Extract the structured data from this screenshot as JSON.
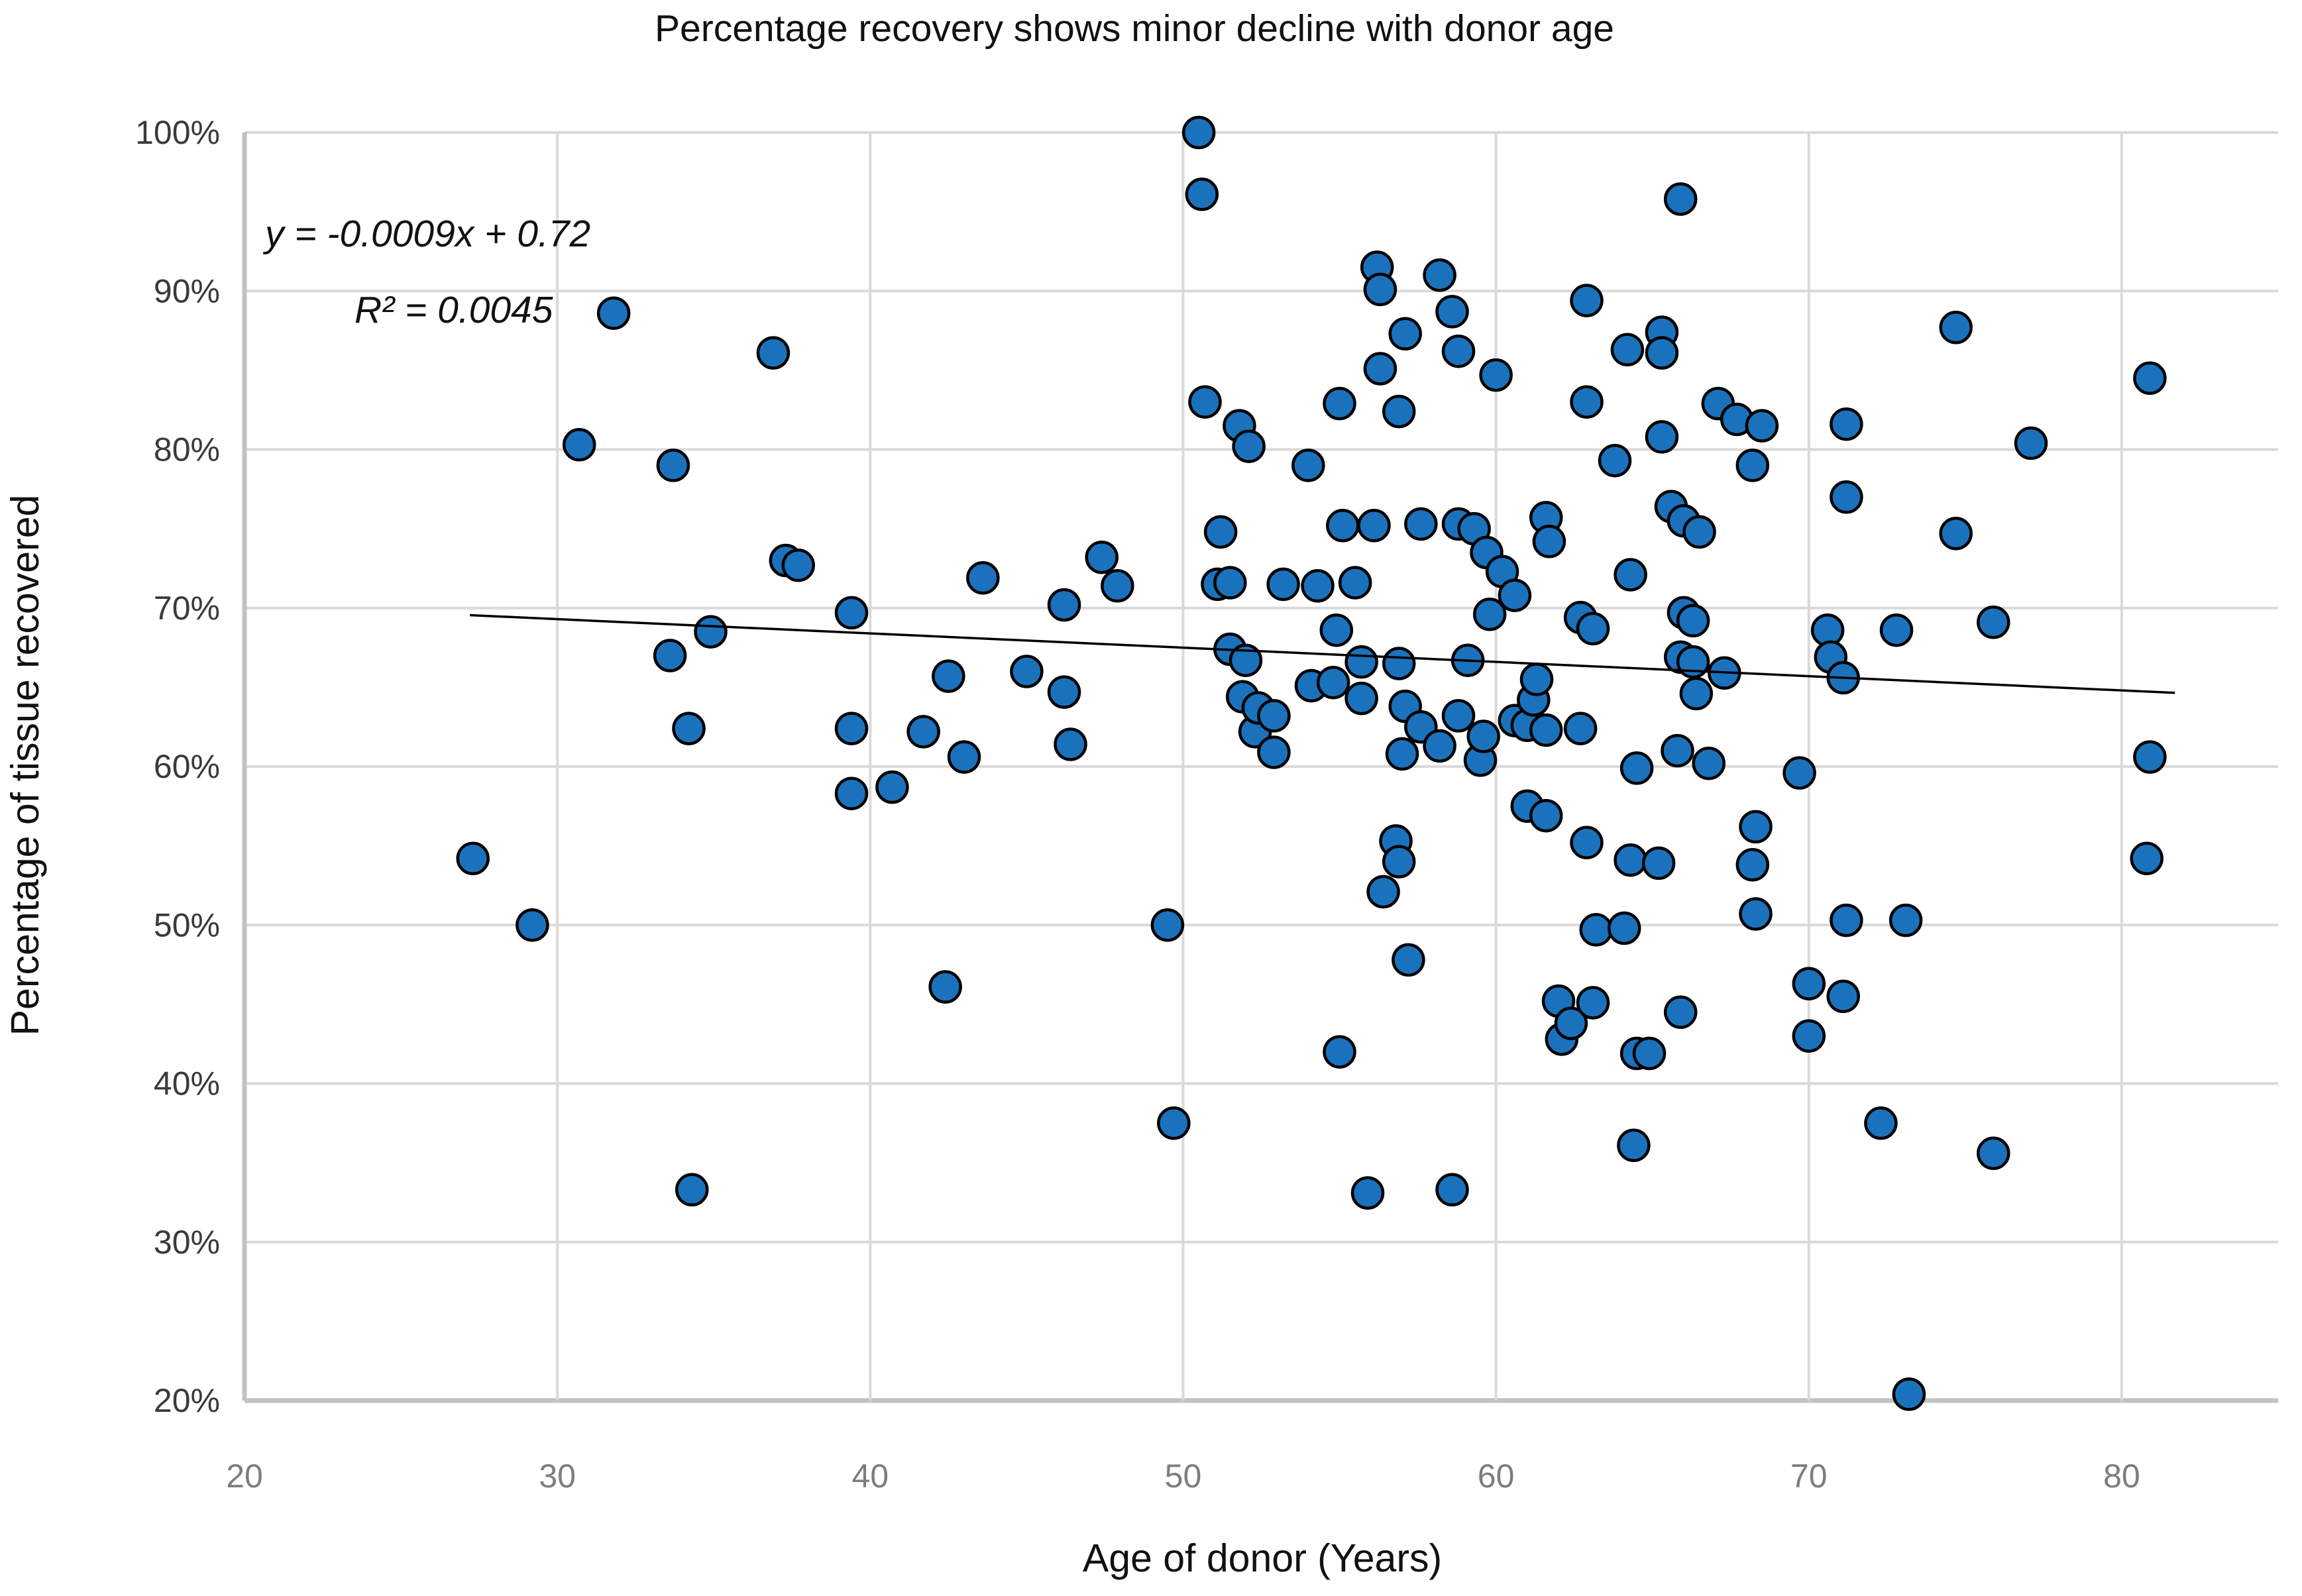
{
  "chart_data": {
    "type": "scatter",
    "title": "Percentage recovery shows minor decline with donor age",
    "xlabel": "Age of donor (Years)",
    "ylabel": "Percentage of tissue recovered",
    "equation": "y = -0.0009x + 0.72",
    "r_squared": "R² = 0.0045",
    "xlim": [
      20,
      85
    ],
    "ylim": [
      20,
      100
    ],
    "x_tick_values": [
      20,
      30,
      40,
      50,
      60,
      70,
      80
    ],
    "y_tick_values": [
      100,
      90,
      80,
      70,
      60,
      50,
      40,
      30,
      20
    ],
    "y_tick_labels": [
      "100%",
      "90%",
      "80%",
      "70%",
      "60%",
      "50%",
      "40%",
      "30%",
      "20%"
    ],
    "grid_on": true,
    "legend": "none",
    "trendline": {
      "slope": -0.0009,
      "intercept": 0.72,
      "x_start": 27.2,
      "x_end": 81.7,
      "color": "#000000"
    },
    "marker": {
      "fill": "#1b72bc",
      "stroke": "#000000",
      "radius_px": 23,
      "stroke_width": 4.5
    },
    "grid_color": "#d9d9d9",
    "axis_color": "#c2c2c2",
    "points": [
      [
        27.3,
        54.2
      ],
      [
        29.2,
        50.0
      ],
      [
        30.7,
        80.3
      ],
      [
        31.8,
        88.6
      ],
      [
        33.6,
        67.0
      ],
      [
        33.7,
        79.0
      ],
      [
        34.2,
        62.4
      ],
      [
        34.3,
        33.3
      ],
      [
        34.9,
        68.5
      ],
      [
        36.9,
        86.1
      ],
      [
        37.3,
        73.0
      ],
      [
        37.7,
        72.7
      ],
      [
        39.4,
        69.7
      ],
      [
        39.4,
        62.4
      ],
      [
        39.4,
        58.3
      ],
      [
        40.7,
        58.7
      ],
      [
        41.7,
        62.2
      ],
      [
        42.4,
        46.1
      ],
      [
        42.5,
        65.7
      ],
      [
        43.0,
        60.6
      ],
      [
        43.6,
        71.9
      ],
      [
        45.0,
        66.0
      ],
      [
        46.2,
        70.2
      ],
      [
        46.2,
        64.7
      ],
      [
        46.4,
        61.4
      ],
      [
        47.4,
        73.2
      ],
      [
        47.9,
        71.4
      ],
      [
        49.5,
        50.0
      ],
      [
        49.7,
        37.5
      ],
      [
        50.5,
        100.0
      ],
      [
        50.6,
        96.1
      ],
      [
        50.7,
        83.0
      ],
      [
        51.1,
        71.5
      ],
      [
        51.2,
        74.8
      ],
      [
        51.5,
        71.6
      ],
      [
        51.5,
        67.4
      ],
      [
        51.8,
        81.5
      ],
      [
        51.9,
        64.4
      ],
      [
        52.0,
        66.7
      ],
      [
        52.1,
        80.2
      ],
      [
        52.3,
        62.2
      ],
      [
        52.4,
        63.7
      ],
      [
        52.9,
        63.2
      ],
      [
        52.9,
        60.9
      ],
      [
        53.2,
        71.5
      ],
      [
        54.0,
        79.0
      ],
      [
        54.1,
        65.1
      ],
      [
        54.3,
        71.4
      ],
      [
        54.8,
        65.3
      ],
      [
        54.9,
        68.6
      ],
      [
        55.0,
        82.9
      ],
      [
        55.0,
        42.0
      ],
      [
        55.1,
        75.2
      ],
      [
        55.5,
        71.6
      ],
      [
        55.7,
        66.6
      ],
      [
        55.7,
        64.3
      ],
      [
        55.9,
        33.1
      ],
      [
        56.1,
        75.2
      ],
      [
        56.2,
        91.5
      ],
      [
        56.3,
        90.1
      ],
      [
        56.3,
        85.1
      ],
      [
        56.4,
        52.1
      ],
      [
        56.8,
        55.3
      ],
      [
        56.9,
        82.4
      ],
      [
        56.9,
        66.5
      ],
      [
        56.9,
        54.0
      ],
      [
        57.0,
        60.8
      ],
      [
        57.1,
        87.3
      ],
      [
        57.1,
        63.8
      ],
      [
        57.2,
        47.8
      ],
      [
        57.6,
        75.3
      ],
      [
        57.6,
        62.5
      ],
      [
        58.2,
        91.0
      ],
      [
        58.2,
        61.3
      ],
      [
        58.8,
        63.2
      ],
      [
        58.6,
        88.7
      ],
      [
        58.6,
        33.3
      ],
      [
        58.8,
        86.2
      ],
      [
        58.8,
        75.3
      ],
      [
        59.1,
        66.7
      ],
      [
        59.3,
        75.0
      ],
      [
        59.5,
        60.4
      ],
      [
        59.6,
        61.9
      ],
      [
        59.7,
        73.5
      ],
      [
        59.8,
        69.6
      ],
      [
        60.0,
        84.7
      ],
      [
        60.2,
        72.3
      ],
      [
        60.6,
        70.8
      ],
      [
        60.6,
        62.9
      ],
      [
        61.0,
        62.6
      ],
      [
        61.0,
        57.5
      ],
      [
        61.2,
        64.2
      ],
      [
        61.3,
        65.5
      ],
      [
        61.6,
        75.7
      ],
      [
        61.6,
        62.3
      ],
      [
        61.6,
        56.9
      ],
      [
        61.7,
        74.2
      ],
      [
        62.0,
        45.2
      ],
      [
        62.1,
        42.8
      ],
      [
        62.4,
        43.8
      ],
      [
        62.7,
        69.4
      ],
      [
        62.7,
        62.4
      ],
      [
        62.9,
        89.4
      ],
      [
        62.9,
        83.0
      ],
      [
        62.9,
        55.2
      ],
      [
        63.1,
        68.7
      ],
      [
        63.1,
        45.1
      ],
      [
        63.2,
        49.7
      ],
      [
        63.8,
        79.3
      ],
      [
        64.1,
        49.8
      ],
      [
        64.2,
        86.3
      ],
      [
        64.3,
        72.1
      ],
      [
        64.3,
        54.1
      ],
      [
        64.4,
        36.1
      ],
      [
        64.5,
        59.9
      ],
      [
        64.5,
        41.9
      ],
      [
        64.9,
        41.9
      ],
      [
        65.2,
        53.9
      ],
      [
        65.3,
        87.4
      ],
      [
        65.3,
        86.1
      ],
      [
        65.3,
        80.8
      ],
      [
        65.6,
        76.4
      ],
      [
        65.8,
        61.0
      ],
      [
        65.9,
        95.8
      ],
      [
        65.9,
        66.9
      ],
      [
        65.9,
        44.5
      ],
      [
        66.0,
        75.5
      ],
      [
        66.0,
        69.7
      ],
      [
        66.3,
        69.2
      ],
      [
        66.3,
        66.6
      ],
      [
        66.4,
        64.6
      ],
      [
        66.5,
        74.8
      ],
      [
        66.8,
        60.2
      ],
      [
        67.1,
        82.9
      ],
      [
        67.3,
        65.9
      ],
      [
        67.7,
        81.9
      ],
      [
        68.2,
        79.0
      ],
      [
        68.2,
        53.8
      ],
      [
        68.3,
        56.2
      ],
      [
        68.3,
        50.7
      ],
      [
        68.5,
        81.5
      ],
      [
        69.7,
        59.6
      ],
      [
        70.0,
        46.3
      ],
      [
        70.0,
        43.0
      ],
      [
        70.6,
        68.6
      ],
      [
        70.7,
        66.9
      ],
      [
        71.1,
        65.6
      ],
      [
        71.1,
        45.5
      ],
      [
        71.2,
        81.6
      ],
      [
        71.2,
        77.0
      ],
      [
        71.2,
        50.3
      ],
      [
        72.3,
        37.5
      ],
      [
        72.8,
        68.6
      ],
      [
        73.1,
        50.3
      ],
      [
        73.2,
        20.4
      ],
      [
        74.7,
        87.7
      ],
      [
        74.7,
        74.7
      ],
      [
        75.9,
        69.1
      ],
      [
        75.9,
        35.6
      ],
      [
        77.1,
        80.4
      ],
      [
        80.8,
        54.2
      ],
      [
        80.9,
        84.5
      ],
      [
        80.9,
        60.6
      ]
    ]
  }
}
